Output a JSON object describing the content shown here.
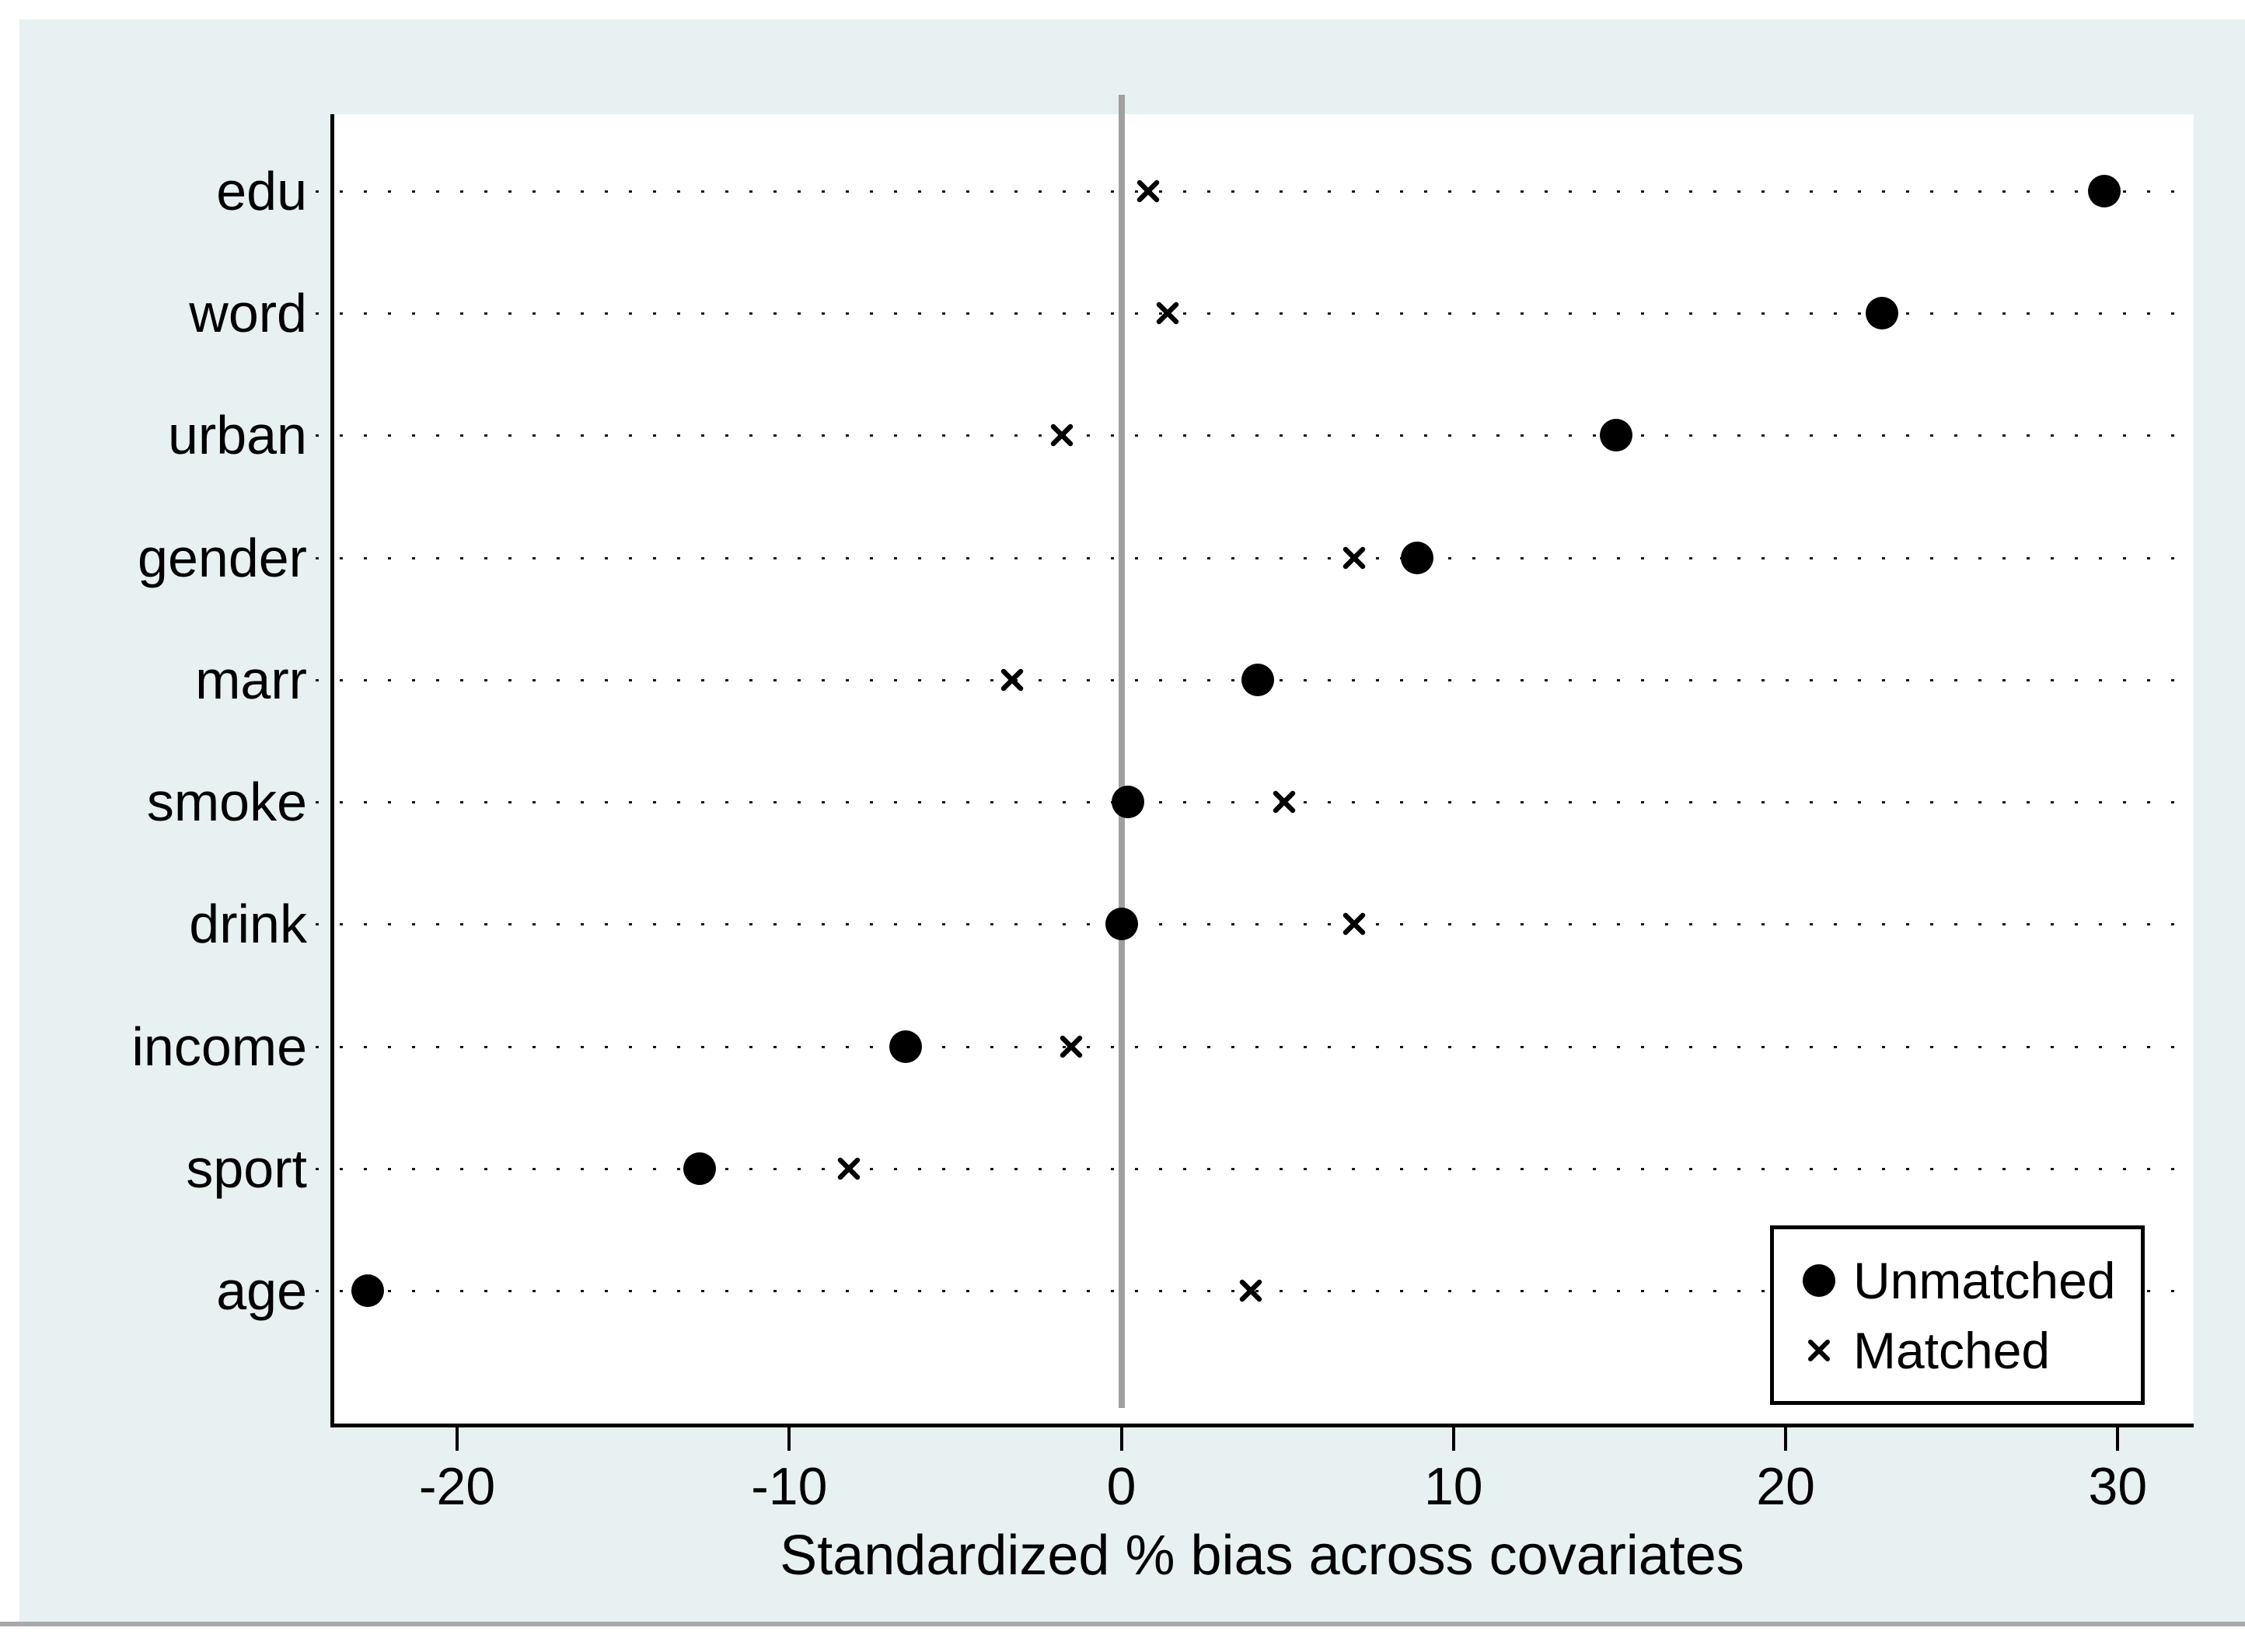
{
  "chart_data": {
    "type": "scatter",
    "title": "",
    "xlabel": "Standardized % bias across covariates",
    "categories": [
      "edu",
      "word",
      "urban",
      "gender",
      "marr",
      "smoke",
      "drink",
      "income",
      "sport",
      "age"
    ],
    "series": [
      {
        "name": "Unmatched",
        "marker": "circle",
        "values": [
          29.6,
          22.9,
          14.9,
          8.9,
          4.1,
          0.2,
          0.0,
          -6.5,
          -12.7,
          -22.7
        ]
      },
      {
        "name": "Matched",
        "marker": "x",
        "values": [
          0.8,
          1.4,
          -1.8,
          7.0,
          -3.3,
          4.9,
          7.0,
          -1.5,
          -8.2,
          3.9
        ]
      }
    ],
    "x_ticks": [
      -20,
      -10,
      0,
      10,
      20,
      30
    ],
    "x_tick_labels": [
      "-20",
      "-10",
      "0",
      "10",
      "20",
      "30"
    ],
    "xlim": [
      -24.4,
      31.7
    ],
    "grid": "dotted-horizontal",
    "zero_reference_line": true,
    "legend_position": "bottom-right"
  },
  "colors": {
    "graph_background": "#e7f1f2",
    "plot_background": "#ffffff",
    "marker": "#000000",
    "axis": "#000000",
    "zero_line": "#a0a0a0",
    "grid_dots": "#151515",
    "bottom_rule": "#a9a9a9"
  }
}
